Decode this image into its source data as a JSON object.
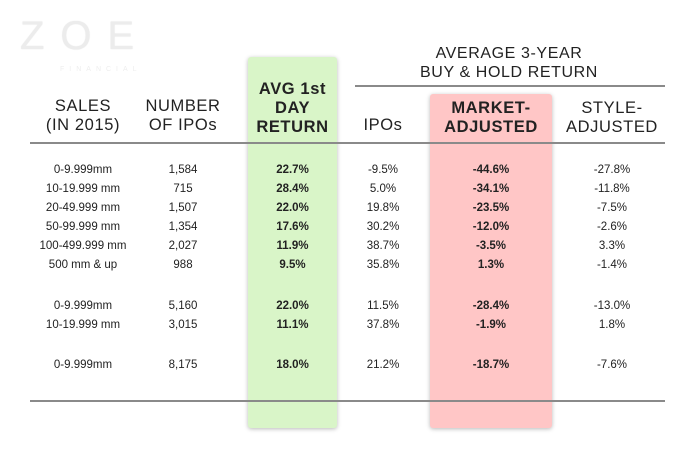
{
  "logo": {
    "word": "ZOE",
    "sub": "FINANCIAL"
  },
  "group_header": {
    "line1": "AVERAGE 3-YEAR",
    "line2": "BUY & HOLD RETURN"
  },
  "headers": {
    "sales": [
      "SALES",
      "(IN 2015)"
    ],
    "number": [
      "NUMBER",
      "OF IPOs"
    ],
    "avg": [
      "AVG 1st",
      "DAY",
      "RETURN"
    ],
    "ipos": "IPOs",
    "market": [
      "MARKET-",
      "ADJUSTED"
    ],
    "style": [
      "STYLE-",
      "ADJUSTED"
    ]
  },
  "colors": {
    "green_highlight": "#d9f5c8",
    "red_highlight": "#ffc6c6",
    "rule": "#8a8a8a"
  },
  "rows": [
    {
      "sales": "0-9.999mm",
      "number": "1,584",
      "avg": "22.7%",
      "ipos": "-9.5%",
      "market": "-44.6%",
      "style": "-27.8%"
    },
    {
      "sales": "10-19.999 mm",
      "number": "715",
      "avg": "28.4%",
      "ipos": "5.0%",
      "market": "-34.1%",
      "style": "-11.8%"
    },
    {
      "sales": "20-49.999 mm",
      "number": "1,507",
      "avg": "22.0%",
      "ipos": "19.8%",
      "market": "-23.5%",
      "style": "-7.5%"
    },
    {
      "sales": "50-99.999 mm",
      "number": "1,354",
      "avg": "17.6%",
      "ipos": "30.2%",
      "market": "-12.0%",
      "style": "-2.6%"
    },
    {
      "sales": "100-499.999 mm",
      "number": "2,027",
      "avg": "11.9%",
      "ipos": "38.7%",
      "market": "-3.5%",
      "style": "3.3%"
    },
    {
      "sales": "500 mm & up",
      "number": "988",
      "avg": "9.5%",
      "ipos": "35.8%",
      "market": "1.3%",
      "style": "-1.4%"
    },
    {
      "sales": "0-9.999mm",
      "number": "5,160",
      "avg": "22.0%",
      "ipos": "11.5%",
      "market": "-28.4%",
      "style": "-13.0%"
    },
    {
      "sales": "10-19.999 mm",
      "number": "3,015",
      "avg": "11.1%",
      "ipos": "37.8%",
      "market": "-1.9%",
      "style": "1.8%"
    },
    {
      "sales": "0-9.999mm",
      "number": "8,175",
      "avg": "18.0%",
      "ipos": "21.2%",
      "market": "-18.7%",
      "style": "-7.6%"
    }
  ]
}
